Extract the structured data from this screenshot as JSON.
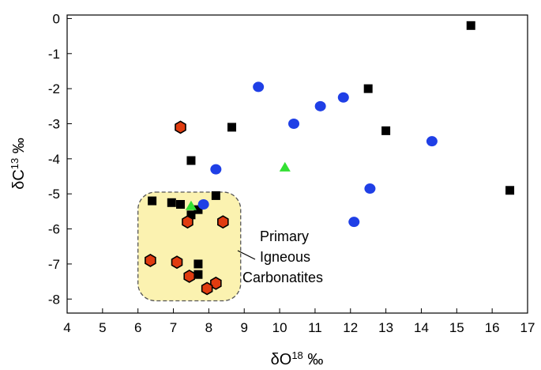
{
  "chart_data": {
    "type": "scatter",
    "title": "",
    "xlabel": {
      "main": "δO",
      "sup": "18",
      "unit": " ‰"
    },
    "ylabel": {
      "main": "δC",
      "sup": "13",
      "unit": " ‰"
    },
    "xlim": [
      4,
      17
    ],
    "ylim": [
      -8.4,
      0.1
    ],
    "x_ticks": [
      4,
      5,
      6,
      7,
      8,
      9,
      10,
      11,
      12,
      13,
      14,
      15,
      16,
      17
    ],
    "y_ticks": [
      0,
      -1,
      -2,
      -3,
      -4,
      -5,
      -6,
      -7,
      -8
    ],
    "grid": false,
    "legend": "none",
    "series": [
      {
        "marker": "square",
        "color": "#000000",
        "points": [
          [
            15.4,
            -0.2
          ],
          [
            12.5,
            -2.0
          ],
          [
            13.0,
            -3.2
          ],
          [
            8.65,
            -3.1
          ],
          [
            7.5,
            -4.05
          ],
          [
            8.2,
            -5.05
          ],
          [
            16.5,
            -4.9
          ],
          [
            6.4,
            -5.2
          ],
          [
            6.95,
            -5.25
          ],
          [
            7.2,
            -5.3
          ],
          [
            7.5,
            -5.6
          ],
          [
            7.7,
            -5.45
          ],
          [
            7.7,
            -7.0
          ],
          [
            7.7,
            -7.3
          ]
        ]
      },
      {
        "marker": "circle",
        "color": "#1f3fe6",
        "points": [
          [
            9.4,
            -1.95
          ],
          [
            11.8,
            -2.25
          ],
          [
            11.15,
            -2.5
          ],
          [
            10.4,
            -3.0
          ],
          [
            14.3,
            -3.5
          ],
          [
            8.2,
            -4.3
          ],
          [
            12.55,
            -4.85
          ],
          [
            7.85,
            -5.3
          ],
          [
            12.1,
            -5.8
          ]
        ]
      },
      {
        "marker": "triangle",
        "color": "#33e033",
        "points": [
          [
            10.15,
            -4.25
          ],
          [
            7.5,
            -5.35
          ]
        ]
      },
      {
        "marker": "hexagon",
        "color": "#e03c10",
        "points": [
          [
            7.2,
            -3.1
          ],
          [
            7.4,
            -5.8
          ],
          [
            8.4,
            -5.8
          ],
          [
            6.35,
            -6.9
          ],
          [
            7.1,
            -6.95
          ],
          [
            7.45,
            -7.35
          ],
          [
            8.2,
            -7.55
          ],
          [
            7.95,
            -7.7
          ]
        ]
      }
    ],
    "annotation": {
      "lines": [
        "Primary",
        "Igneous",
        "Carbonatites"
      ],
      "region": {
        "x": [
          6.0,
          8.9
        ],
        "y": [
          -8.05,
          -4.95
        ]
      },
      "box_color": "#fbf2b0"
    }
  }
}
